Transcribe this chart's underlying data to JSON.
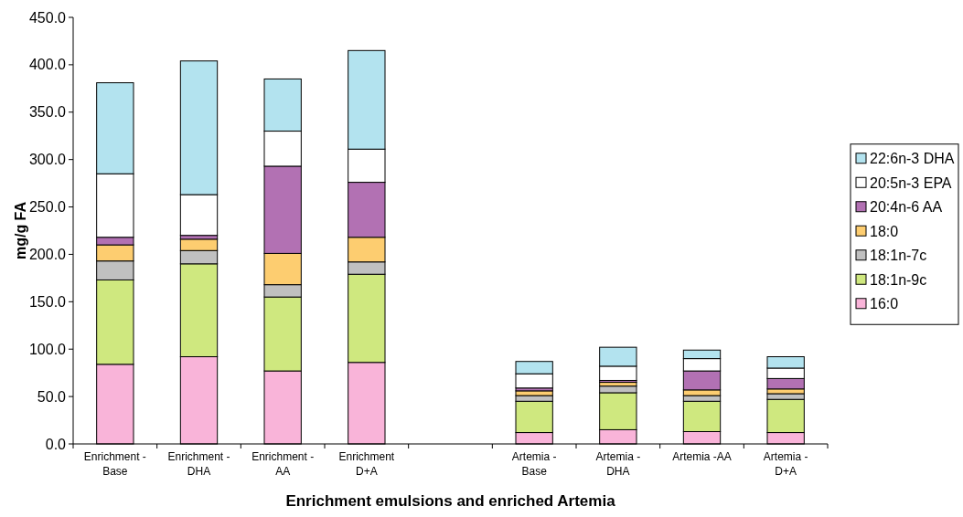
{
  "chart_data": {
    "type": "bar",
    "stacked": true,
    "xlabel": "Enrichment emulsions and enriched Artemia",
    "ylabel": "mg/g FA",
    "categories": [
      "Enrichment - Base",
      "Enrichment - DHA",
      "Enrichment - AA",
      "Enrichment D+A",
      null,
      "Artemia - Base",
      "Artemia - DHA",
      "Artemia -AA",
      "Artemia - D+A"
    ],
    "series": [
      {
        "name": "16:0",
        "color": "#f9b4d9",
        "values": [
          84,
          92,
          77,
          86,
          null,
          12,
          15,
          13,
          12
        ]
      },
      {
        "name": "18:1n-9c",
        "color": "#cfe87f",
        "values": [
          89,
          98,
          78,
          93,
          null,
          33,
          39,
          32,
          35
        ]
      },
      {
        "name": "18:1n-7c",
        "color": "#c0c0c0",
        "values": [
          20,
          14,
          13,
          13,
          null,
          6,
          7,
          6,
          6
        ]
      },
      {
        "name": "18:0",
        "color": "#fdcd70",
        "values": [
          17,
          12,
          33,
          26,
          null,
          5,
          4,
          6,
          5
        ]
      },
      {
        "name": "20:4n-6 AA",
        "color": "#b271b3",
        "values": [
          8,
          4,
          92,
          58,
          null,
          3,
          2,
          20,
          11
        ]
      },
      {
        "name": "20:5n-3 EPA",
        "color": "#ffffff",
        "values": [
          67,
          43,
          37,
          35,
          null,
          15,
          15,
          13,
          11
        ]
      },
      {
        "name": "22:6n-3 DHA",
        "color": "#b3e3ef",
        "values": [
          96,
          141,
          55,
          104,
          null,
          13,
          20,
          9,
          12
        ]
      }
    ],
    "ylim": [
      0,
      450
    ],
    "yticks": [
      {
        "value": 0,
        "label": "0.0"
      },
      {
        "value": 50,
        "label": "50.0"
      },
      {
        "value": 100,
        "label": "100.0"
      },
      {
        "value": 150,
        "label": "150.0"
      },
      {
        "value": 200,
        "label": "200.0"
      },
      {
        "value": 250,
        "label": "250.0"
      },
      {
        "value": 300,
        "label": "300.0"
      },
      {
        "value": 350,
        "label": "350.0"
      },
      {
        "value": 400,
        "label": "400.0"
      },
      {
        "value": 450,
        "label": "450.0"
      }
    ],
    "legend": "right",
    "grid": false
  }
}
